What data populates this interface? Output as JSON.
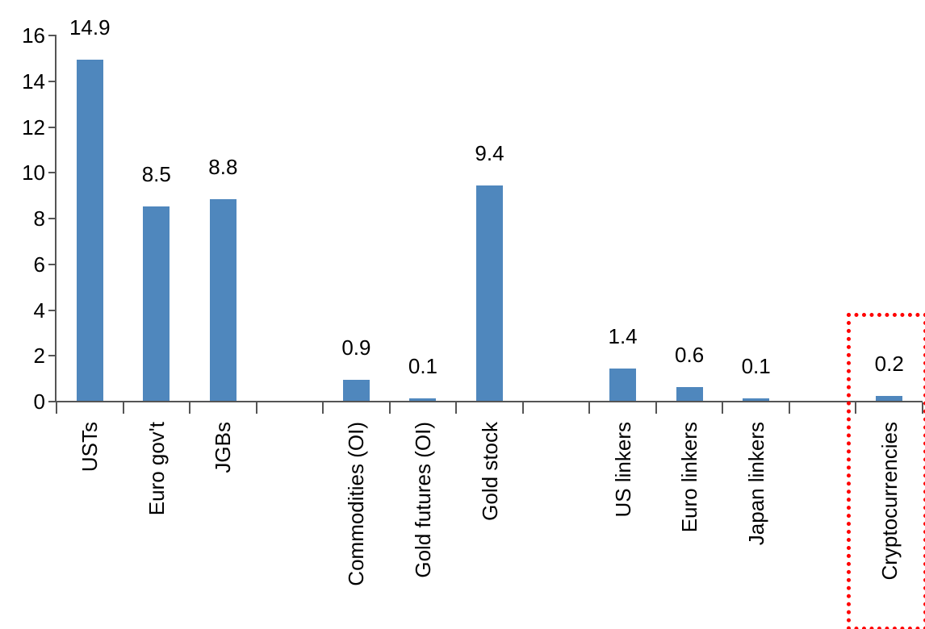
{
  "chart_data": {
    "type": "bar",
    "title": "",
    "xlabel": "",
    "ylabel": "",
    "categories": [
      "USTs",
      "Euro gov't",
      "JGBs",
      "Commodities (OI)",
      "Gold futures (OI)",
      "Gold stock",
      "US linkers",
      "Euro linkers",
      "Japan linkers",
      "Cryptocurrencies"
    ],
    "values": [
      14.9,
      8.5,
      8.8,
      0.9,
      0.1,
      9.4,
      1.4,
      0.6,
      0.1,
      0.2
    ],
    "value_labels": [
      "14.9",
      "8.5",
      "8.8",
      "0.9",
      "0.1",
      "9.4",
      "1.4",
      "0.6",
      "0.1",
      "0.2"
    ],
    "ylim": [
      0,
      16
    ],
    "y_ticks": [
      0,
      2,
      4,
      6,
      8,
      10,
      12,
      14,
      16
    ],
    "grid": false,
    "legend_position": "none",
    "group_gaps_after": [
      "JGBs",
      "Gold stock",
      "Japan linkers"
    ],
    "highlighted_category": "Cryptocurrencies",
    "colors": {
      "bar": "#4F87BD",
      "axis": "#555555",
      "text": "#000000",
      "highlight_border": "#FF0000"
    }
  }
}
